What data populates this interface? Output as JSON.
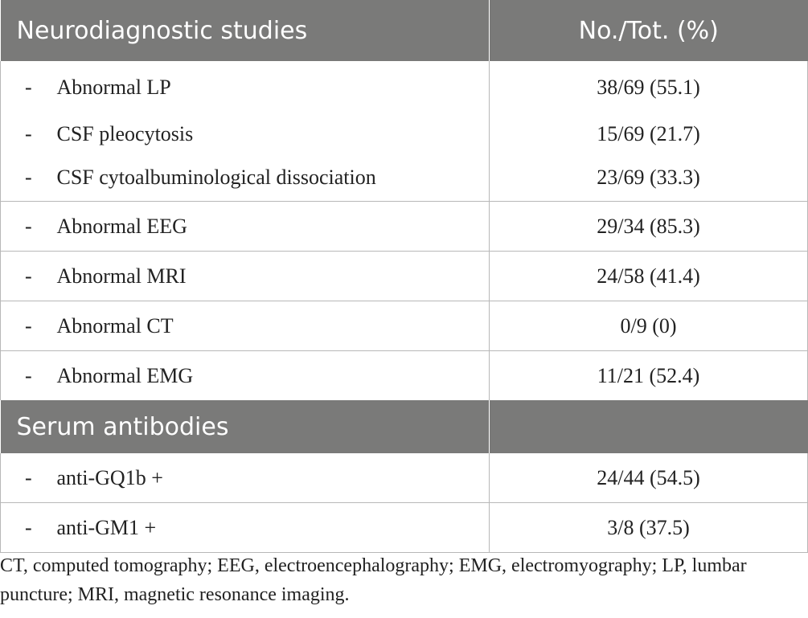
{
  "table": {
    "header": {
      "left": "Neurodiagnostic studies",
      "right": "No./Tot. (%)"
    },
    "rows_neuro": [
      {
        "dash": "-",
        "label": "Abnormal LP",
        "value": "38/69 (55.1)"
      },
      {
        "dash": "-",
        "label": "CSF pleocytosis",
        "value": "15/69 (21.7)"
      },
      {
        "dash": "-",
        "label": "CSF cytoalbuminological dissociation",
        "value": "23/69 (33.3)"
      },
      {
        "dash": "-",
        "label": "Abnormal EEG",
        "value": "29/34 (85.3)"
      },
      {
        "dash": "-",
        "label": "Abnormal MRI",
        "value": "24/58 (41.4)"
      },
      {
        "dash": "-",
        "label": "Abnormal CT",
        "value": "0/9 (0)"
      },
      {
        "dash": "-",
        "label": "Abnormal EMG",
        "value": "11/21 (52.4)"
      }
    ],
    "section2": {
      "left": "Serum antibodies",
      "right": ""
    },
    "rows_serum": [
      {
        "dash": "-",
        "label": "anti-GQ1b +",
        "value": "24/44 (54.5)"
      },
      {
        "dash": "-",
        "label": "anti-GM1 +",
        "value": "3/8 (37.5)"
      }
    ]
  },
  "footnote": "CT, computed tomography; EEG, electroencephalography; EMG, electromyography; LP, lumbar puncture; MRI, magnetic resonance imaging."
}
